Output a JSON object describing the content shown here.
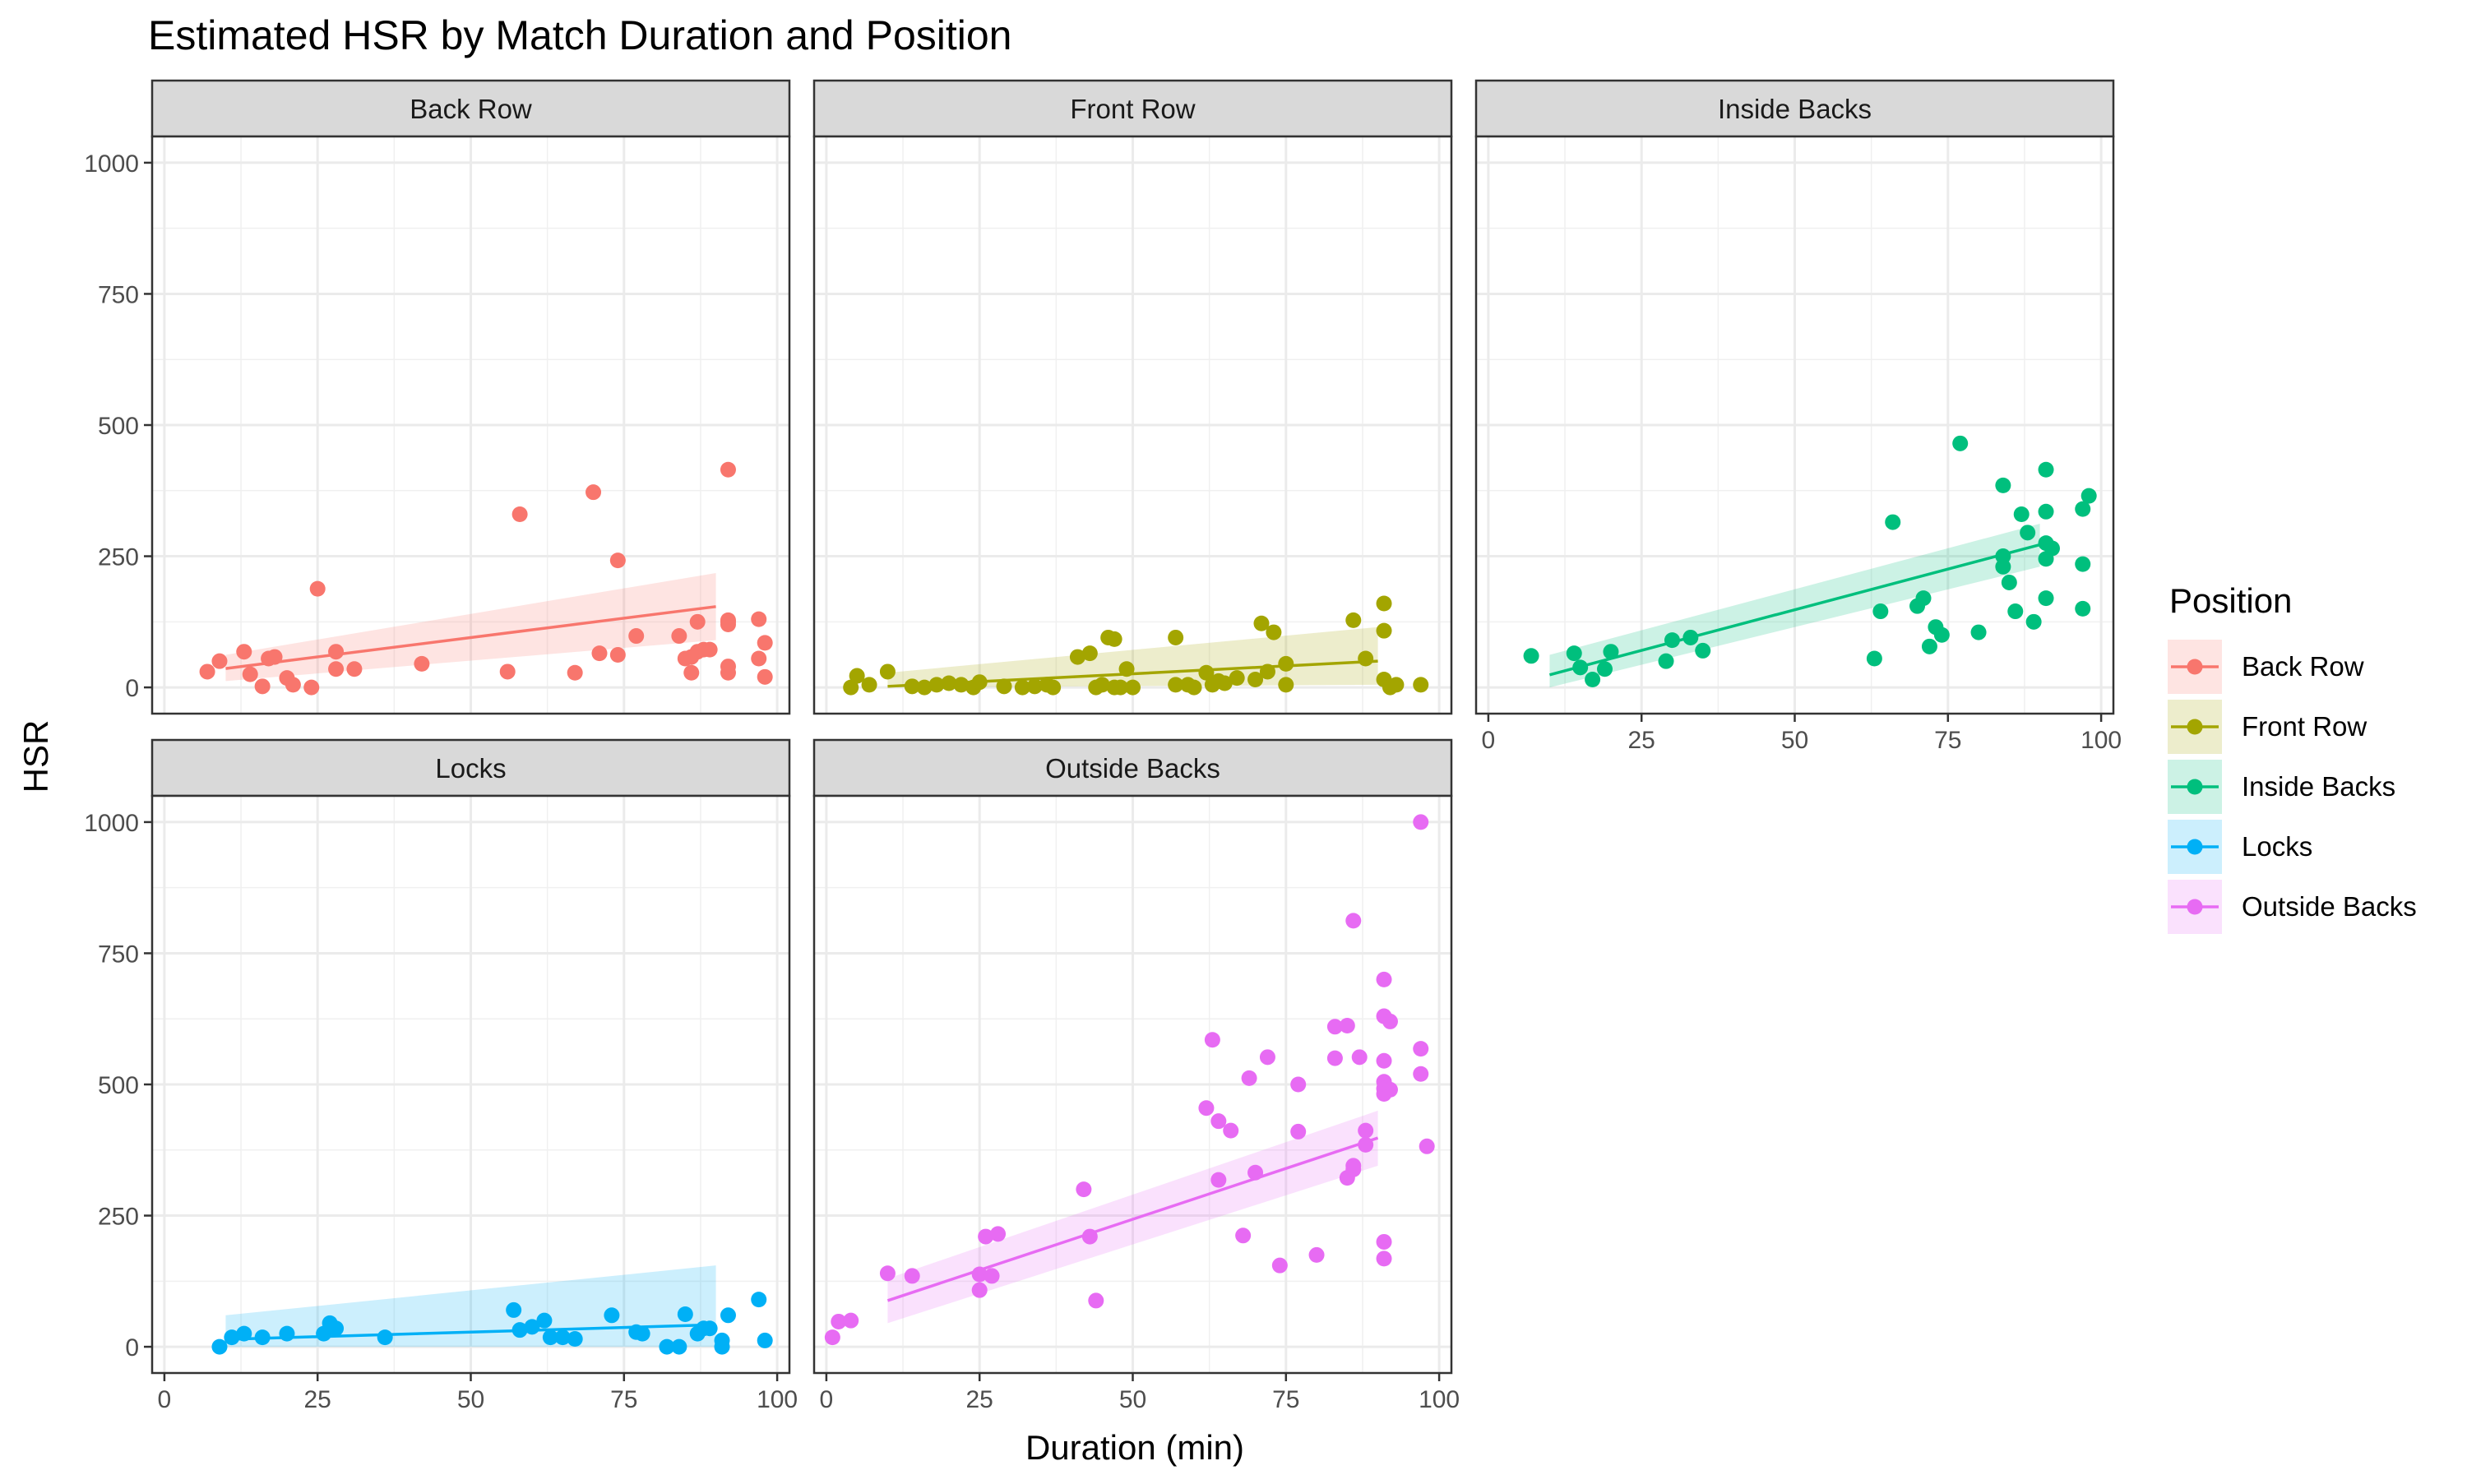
{
  "chart_data": {
    "type": "scatter",
    "title": "Estimated HSR by Match Duration and Position",
    "xlabel": "Duration (min)",
    "ylabel": "HSR",
    "xlim": [
      -2,
      102
    ],
    "ylim": [
      -50,
      1050
    ],
    "x_ticks": [
      0,
      25,
      50,
      75,
      100
    ],
    "y_ticks": [
      0,
      250,
      500,
      750,
      1000
    ],
    "grid": true,
    "legend": {
      "title": "Position",
      "placement": "right",
      "entries": [
        "Back Row",
        "Front Row",
        "Inside Backs",
        "Locks",
        "Outside Backs"
      ]
    },
    "series": [
      {
        "name": "Back Row",
        "color": "#F8766D",
        "points": [
          [
            7,
            30
          ],
          [
            9,
            50
          ],
          [
            13,
            68
          ],
          [
            14,
            25
          ],
          [
            16,
            2
          ],
          [
            17,
            55
          ],
          [
            18,
            58
          ],
          [
            20,
            18
          ],
          [
            21,
            5
          ],
          [
            24,
            0
          ],
          [
            25,
            188
          ],
          [
            28,
            68
          ],
          [
            28,
            35
          ],
          [
            31,
            35
          ],
          [
            42,
            45
          ],
          [
            56,
            30
          ],
          [
            58,
            330
          ],
          [
            67,
            28
          ],
          [
            70,
            372
          ],
          [
            71,
            65
          ],
          [
            74,
            242
          ],
          [
            74,
            62
          ],
          [
            77,
            98
          ],
          [
            84,
            98
          ],
          [
            85,
            55
          ],
          [
            86,
            28
          ],
          [
            86,
            58
          ],
          [
            87,
            125
          ],
          [
            87,
            68
          ],
          [
            88,
            72
          ],
          [
            89,
            72
          ],
          [
            92,
            415
          ],
          [
            92,
            128
          ],
          [
            92,
            120
          ],
          [
            92,
            125
          ],
          [
            92,
            40
          ],
          [
            92,
            28
          ],
          [
            97,
            130
          ],
          [
            97,
            55
          ],
          [
            98,
            85
          ],
          [
            98,
            20
          ]
        ],
        "fit": {
          "x0": 10,
          "y0": 36,
          "x1": 90,
          "y1": 154
        },
        "band": {
          "lower0": 12,
          "upper0": 62,
          "lower1": 90,
          "upper1": 218
        }
      },
      {
        "name": "Front Row",
        "color": "#A3A500",
        "points": [
          [
            4,
            0
          ],
          [
            5,
            22
          ],
          [
            7,
            5
          ],
          [
            10,
            30
          ],
          [
            14,
            2
          ],
          [
            16,
            0
          ],
          [
            18,
            5
          ],
          [
            20,
            8
          ],
          [
            22,
            5
          ],
          [
            24,
            0
          ],
          [
            25,
            10
          ],
          [
            29,
            2
          ],
          [
            32,
            0
          ],
          [
            34,
            2
          ],
          [
            36,
            5
          ],
          [
            37,
            0
          ],
          [
            41,
            58
          ],
          [
            43,
            65
          ],
          [
            44,
            0
          ],
          [
            45,
            5
          ],
          [
            46,
            95
          ],
          [
            47,
            0
          ],
          [
            47,
            92
          ],
          [
            48,
            0
          ],
          [
            49,
            35
          ],
          [
            50,
            0
          ],
          [
            57,
            95
          ],
          [
            57,
            5
          ],
          [
            59,
            5
          ],
          [
            60,
            0
          ],
          [
            62,
            28
          ],
          [
            63,
            5
          ],
          [
            64,
            12
          ],
          [
            65,
            8
          ],
          [
            67,
            18
          ],
          [
            70,
            15
          ],
          [
            71,
            122
          ],
          [
            72,
            30
          ],
          [
            73,
            105
          ],
          [
            75,
            5
          ],
          [
            75,
            45
          ],
          [
            86,
            128
          ],
          [
            88,
            55
          ],
          [
            91,
            160
          ],
          [
            91,
            108
          ],
          [
            91,
            15
          ],
          [
            92,
            0
          ],
          [
            93,
            5
          ],
          [
            97,
            5
          ]
        ],
        "fit": {
          "x0": 10,
          "y0": 2,
          "x1": 90,
          "y1": 50
        },
        "band": {
          "lower0": 0,
          "upper0": 28,
          "lower1": 5,
          "upper1": 115
        }
      },
      {
        "name": "Inside Backs",
        "color": "#00BF7D",
        "points": [
          [
            7,
            60
          ],
          [
            14,
            65
          ],
          [
            15,
            38
          ],
          [
            17,
            15
          ],
          [
            19,
            35
          ],
          [
            20,
            68
          ],
          [
            29,
            50
          ],
          [
            30,
            90
          ],
          [
            33,
            95
          ],
          [
            35,
            70
          ],
          [
            63,
            55
          ],
          [
            64,
            145
          ],
          [
            66,
            315
          ],
          [
            70,
            155
          ],
          [
            71,
            170
          ],
          [
            72,
            78
          ],
          [
            73,
            115
          ],
          [
            74,
            100
          ],
          [
            77,
            465
          ],
          [
            80,
            105
          ],
          [
            84,
            385
          ],
          [
            84,
            250
          ],
          [
            84,
            230
          ],
          [
            85,
            200
          ],
          [
            86,
            145
          ],
          [
            87,
            330
          ],
          [
            88,
            295
          ],
          [
            89,
            125
          ],
          [
            91,
            415
          ],
          [
            91,
            335
          ],
          [
            91,
            245
          ],
          [
            91,
            275
          ],
          [
            91,
            170
          ],
          [
            92,
            265
          ],
          [
            97,
            340
          ],
          [
            97,
            235
          ],
          [
            97,
            150
          ],
          [
            98,
            365
          ]
        ],
        "fit": {
          "x0": 10,
          "y0": 24,
          "x1": 90,
          "y1": 272
        },
        "band": {
          "lower0": 0,
          "upper0": 62,
          "lower1": 230,
          "upper1": 312
        }
      },
      {
        "name": "Locks",
        "color": "#00B0F6",
        "points": [
          [
            9,
            0
          ],
          [
            11,
            18
          ],
          [
            13,
            25
          ],
          [
            16,
            18
          ],
          [
            20,
            25
          ],
          [
            26,
            25
          ],
          [
            27,
            45
          ],
          [
            28,
            35
          ],
          [
            36,
            18
          ],
          [
            57,
            70
          ],
          [
            58,
            32
          ],
          [
            60,
            38
          ],
          [
            62,
            50
          ],
          [
            63,
            18
          ],
          [
            65,
            18
          ],
          [
            67,
            15
          ],
          [
            73,
            60
          ],
          [
            77,
            28
          ],
          [
            78,
            25
          ],
          [
            82,
            0
          ],
          [
            84,
            0
          ],
          [
            85,
            62
          ],
          [
            87,
            25
          ],
          [
            88,
            35
          ],
          [
            89,
            35
          ],
          [
            91,
            0
          ],
          [
            91,
            12
          ],
          [
            92,
            60
          ],
          [
            97,
            90
          ],
          [
            98,
            12
          ]
        ],
        "fit": {
          "x0": 10,
          "y0": 14,
          "x1": 90,
          "y1": 42
        },
        "band": {
          "lower0": 0,
          "upper0": 60,
          "lower1": 0,
          "upper1": 155
        }
      },
      {
        "name": "Outside Backs",
        "color": "#E76BF3",
        "points": [
          [
            1,
            18
          ],
          [
            2,
            48
          ],
          [
            4,
            50
          ],
          [
            10,
            140
          ],
          [
            14,
            135
          ],
          [
            25,
            138
          ],
          [
            25,
            108
          ],
          [
            26,
            210
          ],
          [
            27,
            135
          ],
          [
            28,
            215
          ],
          [
            42,
            300
          ],
          [
            43,
            210
          ],
          [
            44,
            88
          ],
          [
            62,
            455
          ],
          [
            63,
            585
          ],
          [
            64,
            430
          ],
          [
            64,
            318
          ],
          [
            66,
            412
          ],
          [
            68,
            212
          ],
          [
            69,
            512
          ],
          [
            70,
            332
          ],
          [
            72,
            552
          ],
          [
            74,
            155
          ],
          [
            77,
            500
          ],
          [
            77,
            410
          ],
          [
            80,
            175
          ],
          [
            83,
            610
          ],
          [
            83,
            550
          ],
          [
            85,
            612
          ],
          [
            85,
            322
          ],
          [
            86,
            345
          ],
          [
            86,
            812
          ],
          [
            86,
            338
          ],
          [
            87,
            552
          ],
          [
            88,
            412
          ],
          [
            88,
            385
          ],
          [
            91,
            700
          ],
          [
            91,
            630
          ],
          [
            91,
            545
          ],
          [
            91,
            505
          ],
          [
            91,
            492
          ],
          [
            91,
            482
          ],
          [
            91,
            200
          ],
          [
            91,
            168
          ],
          [
            92,
            620
          ],
          [
            92,
            490
          ],
          [
            97,
            1000
          ],
          [
            97,
            520
          ],
          [
            97,
            568
          ],
          [
            98,
            382
          ]
        ],
        "fit": {
          "x0": 10,
          "y0": 88,
          "x1": 90,
          "y1": 398
        },
        "band": {
          "lower0": 45,
          "upper0": 130,
          "lower1": 345,
          "upper1": 450
        }
      }
    ]
  }
}
